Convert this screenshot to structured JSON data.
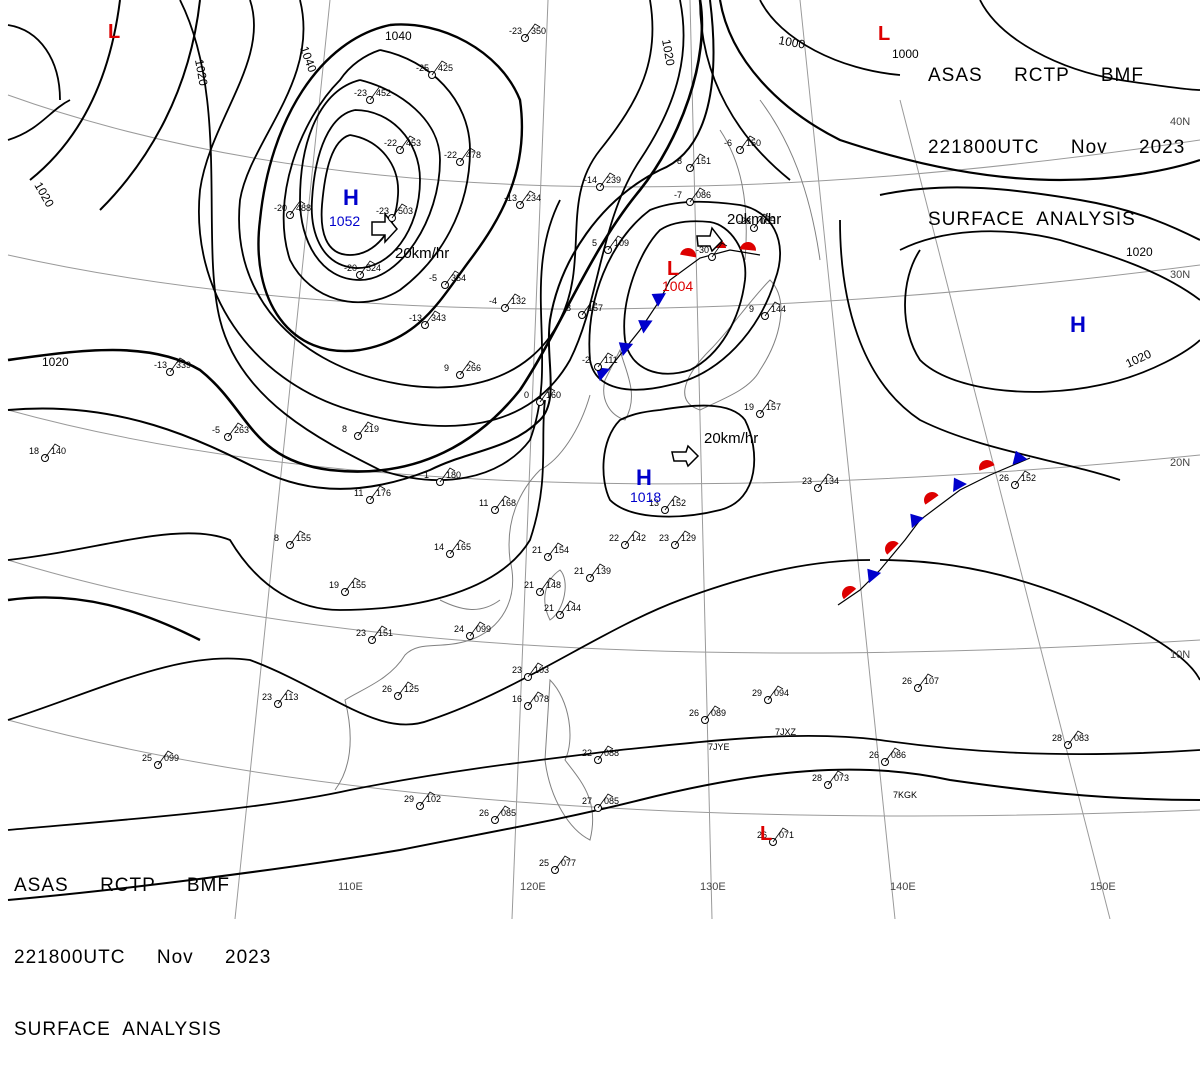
{
  "header": {
    "line1": "ASAS     RCTP     BMF",
    "line2": "221800UTC     Nov     2023",
    "line3": "SURFACE  ANALYSIS"
  },
  "footer": {
    "line1": "ASAS     RCTP     BMF",
    "line2": "221800UTC     Nov     2023",
    "line3": "SURFACE  ANALYSIS"
  },
  "colors": {
    "high": "#0000cc",
    "low": "#dd0000",
    "warm_front": "#dd0000",
    "cold_front": "#0000cc",
    "isobar": "#000000",
    "grid": "#9a9a9a",
    "coast": "#808080"
  },
  "lon_labels": [
    "110E",
    "120E",
    "130E",
    "140E",
    "150E"
  ],
  "lat_labels": [
    "40N",
    "30N",
    "20N",
    "10N"
  ],
  "isobar_labels": [
    "1040",
    "1020",
    "1020",
    "1040",
    "1020",
    "1000",
    "1000",
    "1020",
    "1020",
    "1020"
  ],
  "pressure_centers": [
    {
      "type": "H",
      "value": "1052"
    },
    {
      "type": "H",
      "value": "1018"
    },
    {
      "type": "H",
      "value": ""
    },
    {
      "type": "L",
      "value": "1004"
    },
    {
      "type": "L",
      "value": ""
    },
    {
      "type": "L",
      "value": ""
    },
    {
      "type": "L",
      "value": "1000"
    }
  ],
  "motion_labels": [
    "20km/hr",
    "20km/hr",
    "20km/hr"
  ],
  "ship_callsigns": [
    "7JYE",
    "7JXZ",
    "7KGK"
  ],
  "station_obs": [
    {
      "t": "-23",
      "p": "350"
    },
    {
      "t": "-25",
      "p": "425"
    },
    {
      "t": "-23",
      "p": "452"
    },
    {
      "t": "-22",
      "p": "453"
    },
    {
      "t": "-22",
      "p": "478"
    },
    {
      "t": "-23",
      "p": "503"
    },
    {
      "t": "-20",
      "p": "488"
    },
    {
      "t": "-20",
      "p": "524"
    },
    {
      "t": "-5",
      "p": "354"
    },
    {
      "t": "-13",
      "p": "234"
    },
    {
      "t": "-14",
      "p": "239"
    },
    {
      "t": "-13",
      "p": "343"
    },
    {
      "t": "-4",
      "p": "132"
    },
    {
      "t": "8",
      "p": "157"
    },
    {
      "t": "-7",
      "p": "086"
    },
    {
      "t": "-8",
      "p": "151"
    },
    {
      "t": "-6",
      "p": "150"
    },
    {
      "t": "-13",
      "p": "339"
    },
    {
      "t": "-5",
      "p": "263"
    },
    {
      "t": "8",
      "p": "219"
    },
    {
      "t": "9",
      "p": "266"
    },
    {
      "t": "1",
      "p": "180"
    },
    {
      "t": "11",
      "p": "176"
    },
    {
      "t": "11",
      "p": "168"
    },
    {
      "t": "8",
      "p": "155"
    },
    {
      "t": "14",
      "p": "165"
    },
    {
      "t": "21",
      "p": "154"
    },
    {
      "t": "18",
      "p": "140"
    },
    {
      "t": "19",
      "p": "155"
    },
    {
      "t": "23",
      "p": "151"
    },
    {
      "t": "24",
      "p": "099"
    },
    {
      "t": "23",
      "p": "103"
    },
    {
      "t": "16",
      "p": "078"
    },
    {
      "t": "26",
      "p": "125"
    },
    {
      "t": "23",
      "p": "113"
    },
    {
      "t": "25",
      "p": "099"
    },
    {
      "t": "29",
      "p": "102"
    },
    {
      "t": "26",
      "p": "085"
    },
    {
      "t": "25",
      "p": "077"
    },
    {
      "t": "22",
      "p": "142"
    },
    {
      "t": "23",
      "p": "129"
    },
    {
      "t": "21",
      "p": "139"
    },
    {
      "t": "21",
      "p": "148"
    },
    {
      "t": "21",
      "p": "144"
    },
    {
      "t": "26",
      "p": "089"
    },
    {
      "t": "29",
      "p": "094"
    },
    {
      "t": "23",
      "p": "134"
    },
    {
      "t": "26",
      "p": "107"
    },
    {
      "t": "26",
      "p": "086"
    },
    {
      "t": "28",
      "p": "083"
    },
    {
      "t": "28",
      "p": "073"
    },
    {
      "t": "26",
      "p": "071"
    },
    {
      "t": "22",
      "p": "088"
    },
    {
      "t": "27",
      "p": "085"
    },
    {
      "t": "13",
      "p": "152"
    },
    {
      "t": "19",
      "p": "157"
    },
    {
      "t": "9",
      "p": "144"
    },
    {
      "t": "26",
      "p": "152"
    },
    {
      "t": "0",
      "p": "160"
    },
    {
      "t": "-2",
      "p": "111"
    },
    {
      "t": "-30",
      "p": ""
    },
    {
      "t": "-28",
      "p": "085"
    },
    {
      "t": "5",
      "p": "109"
    }
  ]
}
